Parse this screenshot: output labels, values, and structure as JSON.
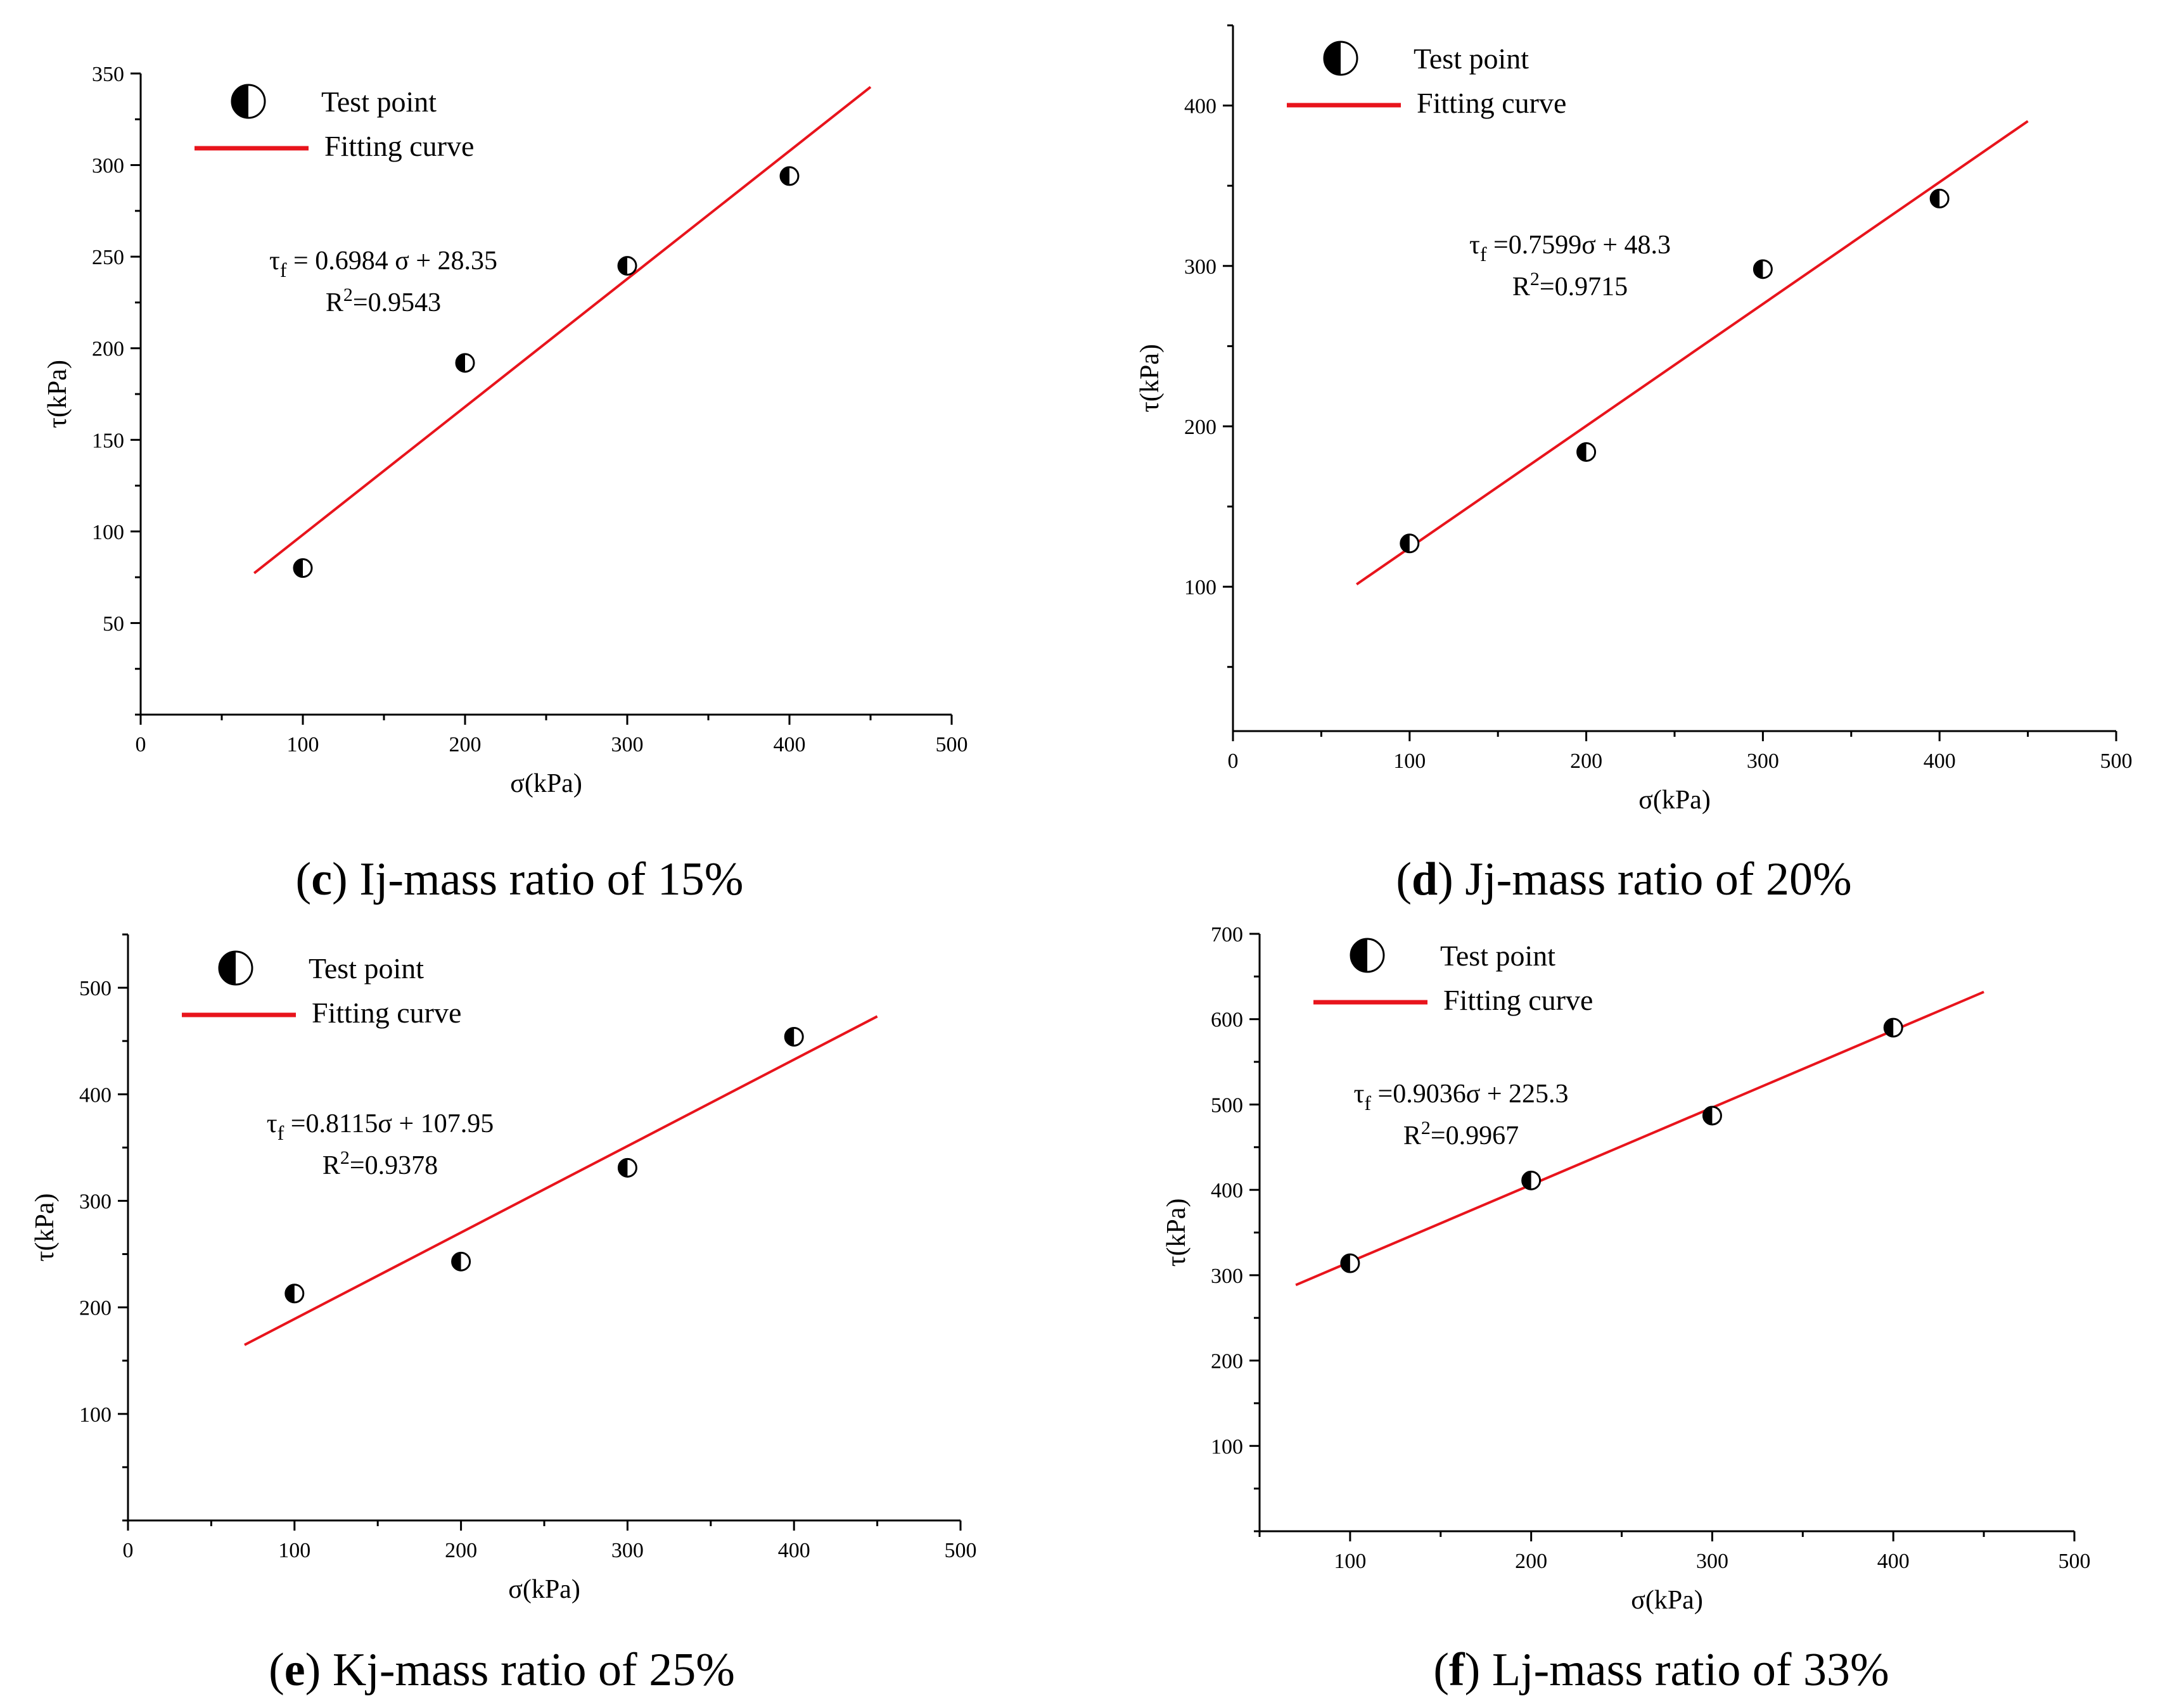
{
  "colors": {
    "fit_line": "#e8141c",
    "axis": "#000000",
    "marker_fill": "#000000",
    "marker_open": "#ffffff"
  },
  "marker_icon": "half-filled-circle",
  "chart_data": [
    {
      "type": "scatter",
      "panel_letter": "c",
      "caption": "Ij-mass ratio of 15%",
      "xlabel": "σ(kPa)",
      "ylabel": "τ(kPa)",
      "xlim": [
        0,
        500
      ],
      "ylim": [
        0,
        350
      ],
      "xticks": [
        0,
        100,
        200,
        300,
        400,
        500
      ],
      "yticks": [
        50,
        100,
        150,
        200,
        250,
        300,
        350
      ],
      "legend": {
        "placement": "top-left",
        "point_label": "Test point",
        "line_label": "Fitting curve"
      },
      "equation": {
        "lhs": "τ",
        "sub": "f",
        "rhs": " = 0.6984 σ + 28.35",
        "r2_prefix": "R",
        "r2_sup": "2",
        "r2_value": "=0.9543"
      },
      "points": [
        {
          "x": 100,
          "y": 80
        },
        {
          "x": 200,
          "y": 192
        },
        {
          "x": 300,
          "y": 245
        },
        {
          "x": 400,
          "y": 294
        }
      ],
      "fit": {
        "slope": 0.6984,
        "intercept": 28.35,
        "x_range": [
          70,
          450
        ]
      }
    },
    {
      "type": "scatter",
      "panel_letter": "d",
      "caption": "Jj-mass ratio of 20%",
      "xlabel": "σ(kPa)",
      "ylabel": "τ(kPa)",
      "xlim": [
        0,
        500
      ],
      "ylim": [
        10,
        450
      ],
      "xticks": [
        0,
        100,
        200,
        300,
        400,
        500
      ],
      "yticks": [
        100,
        200,
        300,
        400
      ],
      "legend": {
        "placement": "top-left",
        "point_label": "Test point",
        "line_label": "Fitting curve"
      },
      "equation": {
        "lhs": "τ",
        "sub": "f",
        "rhs": " =0.7599σ + 48.3",
        "r2_prefix": "R",
        "r2_sup": "2",
        "r2_value": "=0.9715"
      },
      "points": [
        {
          "x": 100,
          "y": 127
        },
        {
          "x": 200,
          "y": 184
        },
        {
          "x": 300,
          "y": 298
        },
        {
          "x": 400,
          "y": 342
        }
      ],
      "fit": {
        "slope": 0.7599,
        "intercept": 48.3,
        "x_range": [
          70,
          450
        ]
      }
    },
    {
      "type": "scatter",
      "panel_letter": "e",
      "caption": "Kj-mass ratio of 25%",
      "xlabel": "σ(kPa)",
      "ylabel": "τ(kPa)",
      "xlim": [
        0,
        500
      ],
      "ylim": [
        0,
        550
      ],
      "xticks": [
        0,
        100,
        200,
        300,
        400,
        500
      ],
      "yticks": [
        100,
        200,
        300,
        400,
        500
      ],
      "legend": {
        "placement": "top-left",
        "point_label": "Test point",
        "line_label": "Fitting curve"
      },
      "equation": {
        "lhs": "τ",
        "sub": "f",
        "rhs": " =0.8115σ + 107.95",
        "r2_prefix": "R",
        "r2_sup": "2",
        "r2_value": "=0.9378"
      },
      "points": [
        {
          "x": 100,
          "y": 213
        },
        {
          "x": 200,
          "y": 243
        },
        {
          "x": 300,
          "y": 331
        },
        {
          "x": 400,
          "y": 454
        }
      ],
      "fit": {
        "slope": 0.8115,
        "intercept": 107.95,
        "x_range": [
          70,
          450
        ]
      }
    },
    {
      "type": "scatter",
      "panel_letter": "f",
      "caption": "Lj-mass ratio of 33%",
      "xlabel": "σ(kPa)",
      "ylabel": "τ(kPa)",
      "xlim": [
        50,
        500
      ],
      "ylim": [
        0,
        700
      ],
      "xticks": [
        100,
        200,
        300,
        400,
        500
      ],
      "yticks": [
        100,
        200,
        300,
        400,
        500,
        600,
        700
      ],
      "legend": {
        "placement": "top-left",
        "point_label": "Test point",
        "line_label": "Fitting curve"
      },
      "equation": {
        "lhs": "τ",
        "sub": "f",
        "rhs": " =0.9036σ + 225.3",
        "r2_prefix": "R",
        "r2_sup": "2",
        "r2_value": "=0.9967"
      },
      "points": [
        {
          "x": 100,
          "y": 314
        },
        {
          "x": 200,
          "y": 411
        },
        {
          "x": 300,
          "y": 487
        },
        {
          "x": 400,
          "y": 590
        }
      ],
      "fit": {
        "slope": 0.9036,
        "intercept": 225.3,
        "x_range": [
          70,
          450
        ]
      }
    }
  ]
}
